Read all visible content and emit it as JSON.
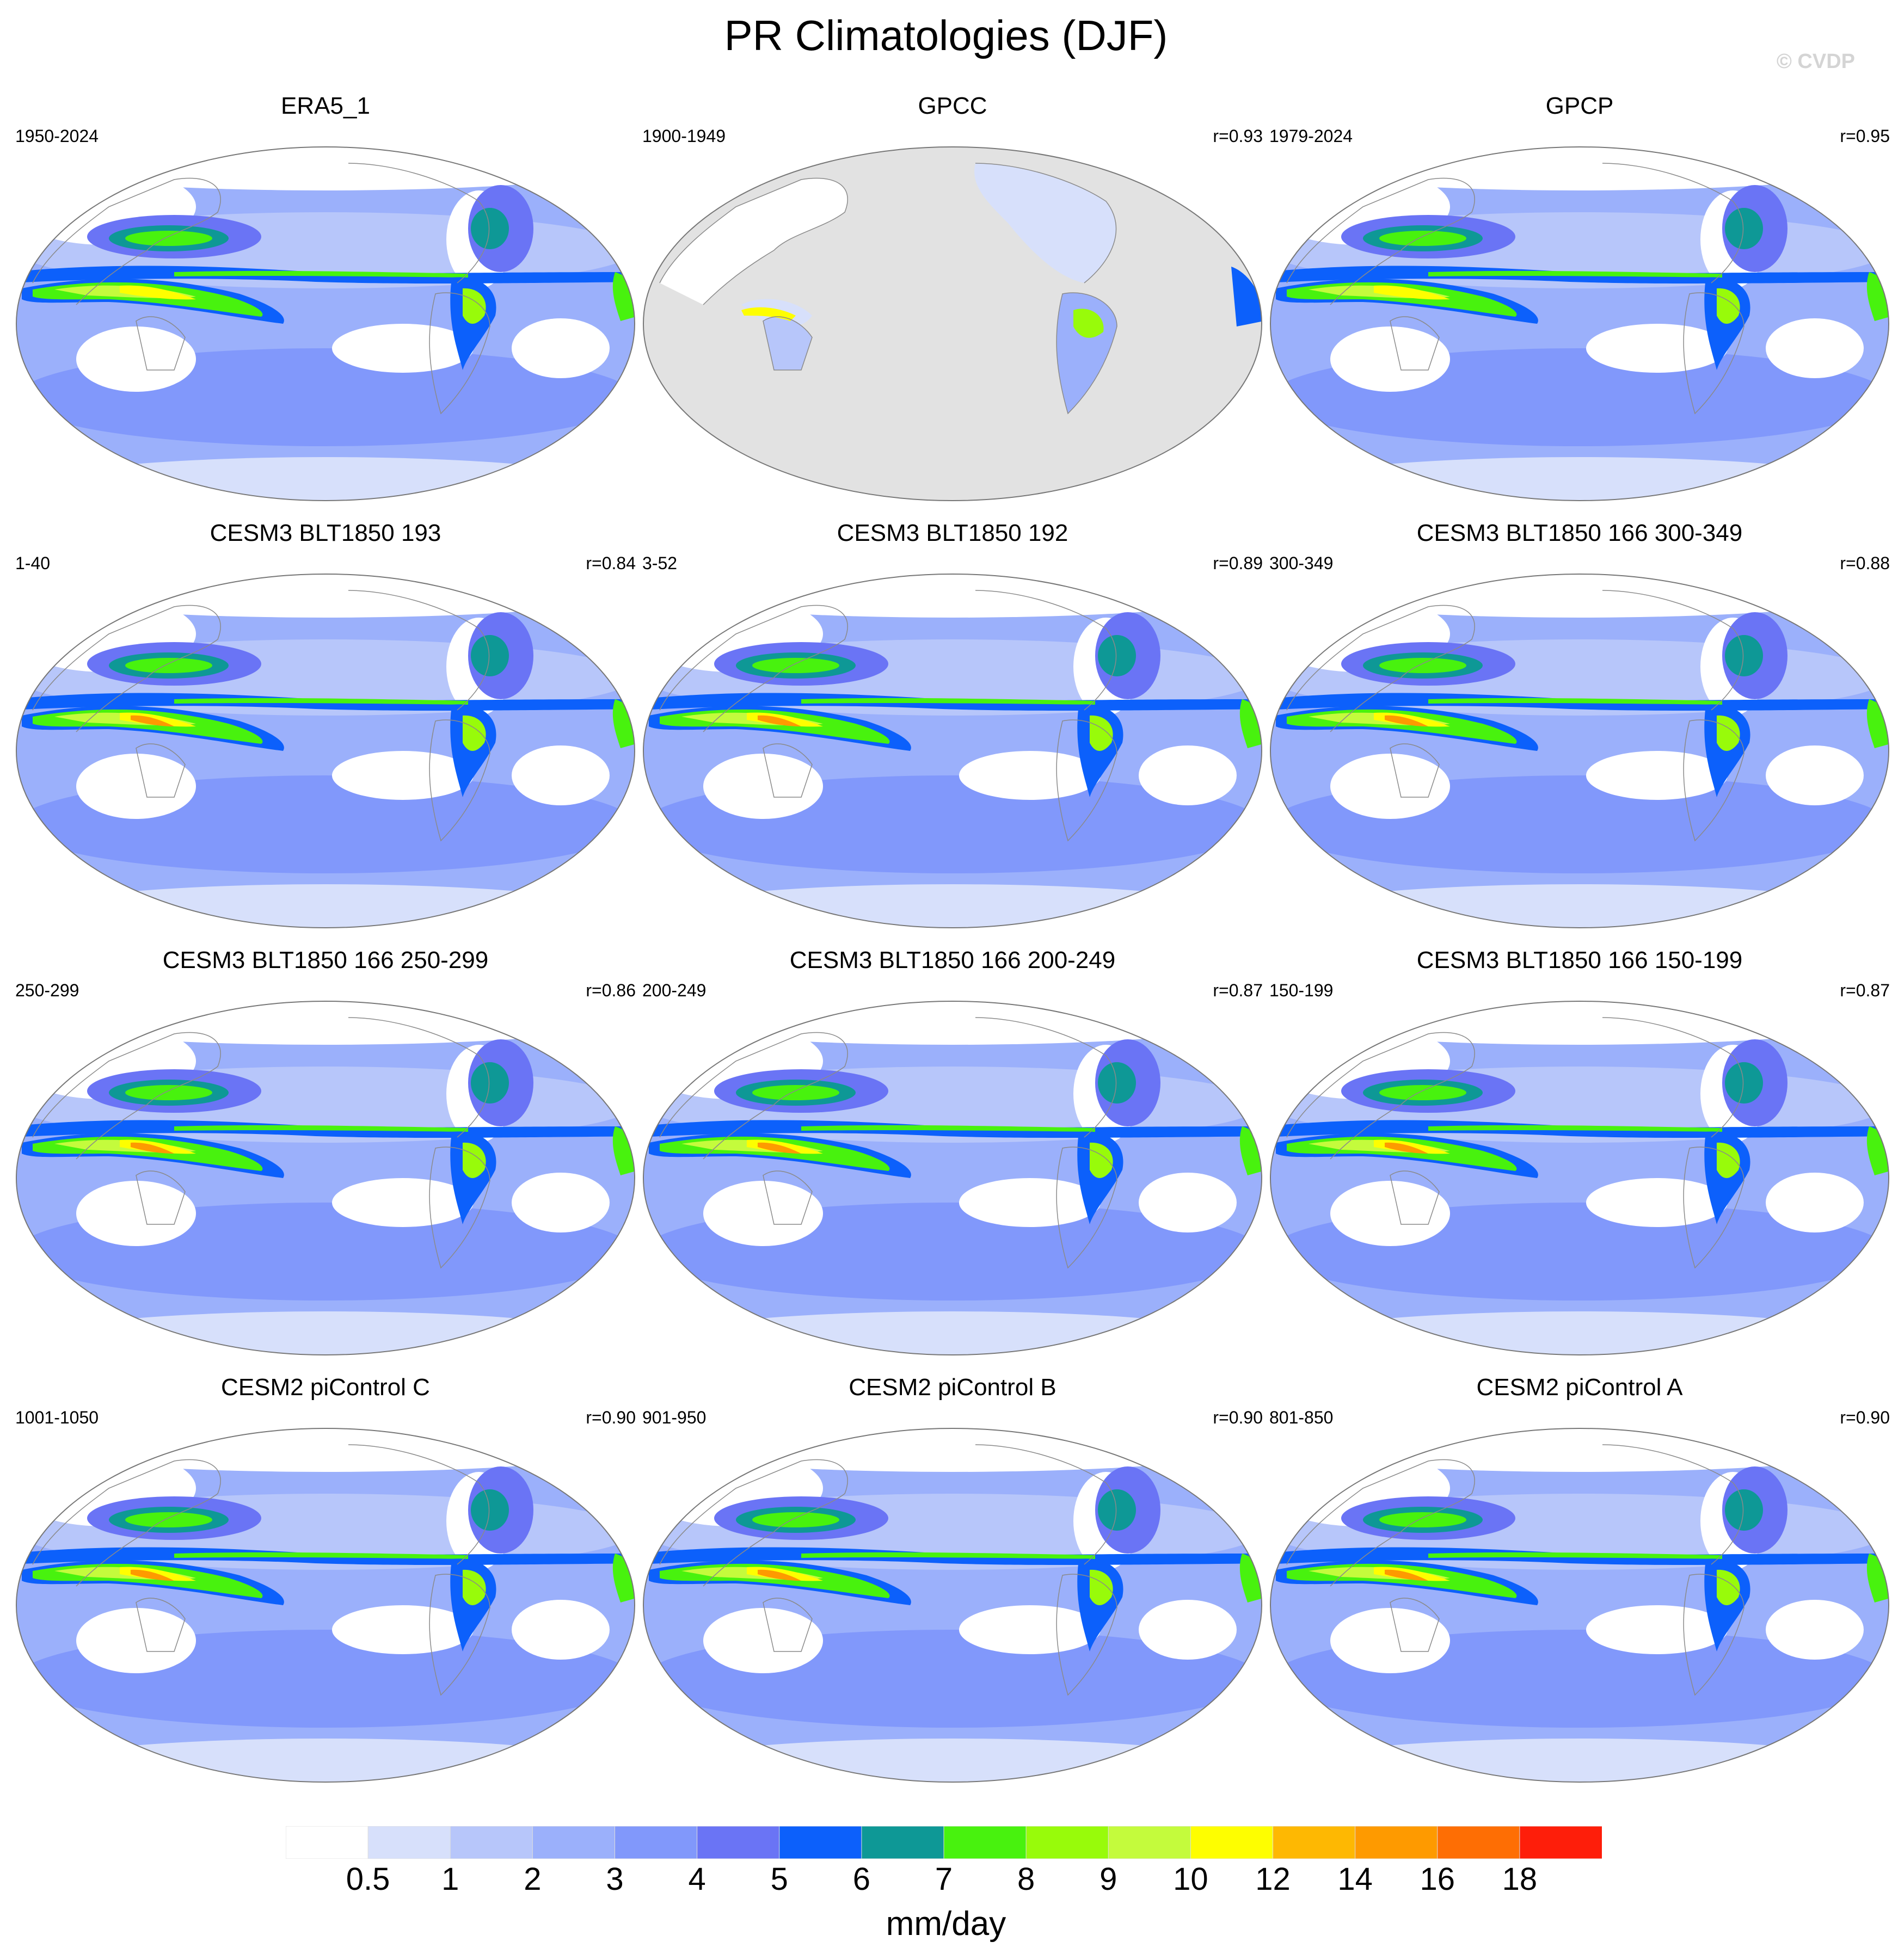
{
  "title": "PR Climatologies (DJF)",
  "copyright": "© CVDP",
  "units": "mm/day",
  "colorbar": {
    "labels": [
      "0.5",
      "1",
      "2",
      "3",
      "4",
      "5",
      "6",
      "7",
      "8",
      "9",
      "10",
      "12",
      "14",
      "16",
      "18"
    ],
    "colors": [
      "#ffffff",
      "#d7e0fb",
      "#b7c6fa",
      "#9bb0fb",
      "#8198fb",
      "#6a74f5",
      "#0c60fb",
      "#0e9896",
      "#48f20e",
      "#98fb0a",
      "#c4fb3c",
      "#fefe00",
      "#feb802",
      "#fe9a00",
      "#fe6e04",
      "#fe1e0a"
    ]
  },
  "panels": [
    {
      "title": "ERA5_1",
      "years": "1950-2024",
      "r": "",
      "style": "obs"
    },
    {
      "title": "GPCC",
      "years": "1900-1949",
      "r": "r=0.93",
      "style": "land"
    },
    {
      "title": "GPCP",
      "years": "1979-2024",
      "r": "r=0.95",
      "style": "obs"
    },
    {
      "title": "CESM3 BLT1850 193",
      "years": "1-40",
      "r": "r=0.84",
      "style": "model"
    },
    {
      "title": "CESM3 BLT1850 192",
      "years": "3-52",
      "r": "r=0.89",
      "style": "model"
    },
    {
      "title": "CESM3 BLT1850 166 300-349",
      "years": "300-349",
      "r": "r=0.88",
      "style": "model"
    },
    {
      "title": "CESM3 BLT1850 166 250-299",
      "years": "250-299",
      "r": "r=0.86",
      "style": "model"
    },
    {
      "title": "CESM3 BLT1850 166 200-249",
      "years": "200-249",
      "r": "r=0.87",
      "style": "model"
    },
    {
      "title": "CESM3 BLT1850 166 150-199",
      "years": "150-199",
      "r": "r=0.87",
      "style": "model"
    },
    {
      "title": "CESM2 piControl C",
      "years": "1001-1050",
      "r": "r=0.90",
      "style": "model2"
    },
    {
      "title": "CESM2 piControl B",
      "years": "901-950",
      "r": "r=0.90",
      "style": "model2"
    },
    {
      "title": "CESM2 piControl A",
      "years": "801-850",
      "r": "r=0.90",
      "style": "model2"
    }
  ]
}
